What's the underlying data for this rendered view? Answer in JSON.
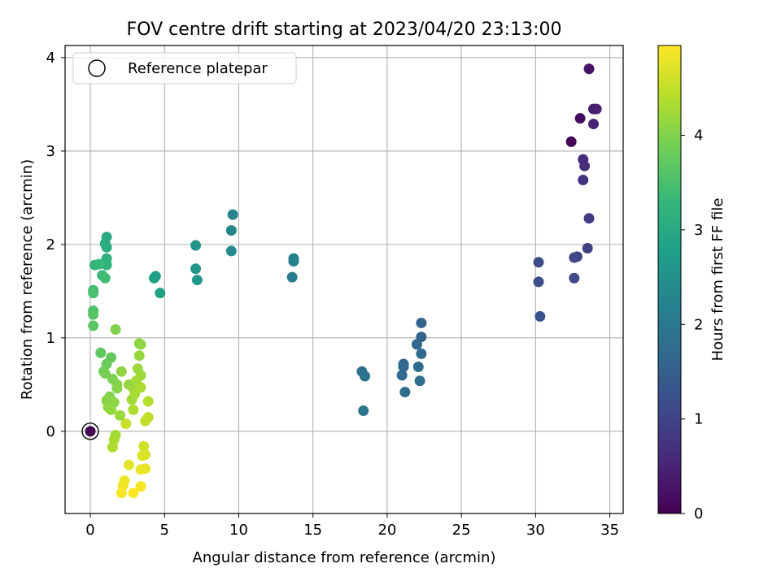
{
  "chart_data": {
    "type": "scatter",
    "title": "FOV centre drift starting at 2023/04/20 23:13:00",
    "xlabel": "Angular distance from reference (arcmin)",
    "ylabel": "Rotation from reference (arcmin)",
    "xlim": [
      -1.7,
      35.9
    ],
    "ylim": [
      -0.88,
      4.13
    ],
    "xticks": [
      0,
      5,
      10,
      15,
      20,
      25,
      30,
      35
    ],
    "yticks": [
      0,
      1,
      2,
      3,
      4
    ],
    "grid": true,
    "legend": {
      "position": "top-left",
      "entries": [
        "Reference platepar"
      ]
    },
    "reference_point": {
      "x": 0,
      "y": 0
    },
    "colorbar": {
      "label": "Hours from first FF file",
      "colormap": "viridis",
      "range": [
        0,
        4.95
      ],
      "ticks": [
        0,
        1,
        2,
        3,
        4
      ]
    },
    "points": [
      {
        "x": 32.4,
        "y": 3.1,
        "c": 0.05
      },
      {
        "x": 33.0,
        "y": 3.35,
        "c": 0.15
      },
      {
        "x": 33.6,
        "y": 3.88,
        "c": 0.25
      },
      {
        "x": 33.9,
        "y": 3.45,
        "c": 0.35
      },
      {
        "x": 34.1,
        "y": 3.45,
        "c": 0.45
      },
      {
        "x": 33.9,
        "y": 3.29,
        "c": 0.5
      },
      {
        "x": 33.2,
        "y": 2.91,
        "c": 0.6
      },
      {
        "x": 33.3,
        "y": 2.84,
        "c": 0.65
      },
      {
        "x": 33.2,
        "y": 2.69,
        "c": 0.75
      },
      {
        "x": 33.6,
        "y": 2.28,
        "c": 0.85
      },
      {
        "x": 33.5,
        "y": 1.96,
        "c": 0.95
      },
      {
        "x": 32.8,
        "y": 1.87,
        "c": 1.0
      },
      {
        "x": 32.6,
        "y": 1.86,
        "c": 1.05
      },
      {
        "x": 32.6,
        "y": 1.64,
        "c": 1.1
      },
      {
        "x": 30.2,
        "y": 1.81,
        "c": 1.15
      },
      {
        "x": 30.2,
        "y": 1.6,
        "c": 1.2
      },
      {
        "x": 30.3,
        "y": 1.23,
        "c": 1.25
      },
      {
        "x": 22.3,
        "y": 1.16,
        "c": 1.55
      },
      {
        "x": 22.3,
        "y": 1.01,
        "c": 1.6
      },
      {
        "x": 22.0,
        "y": 0.93,
        "c": 1.65
      },
      {
        "x": 22.3,
        "y": 0.83,
        "c": 1.7
      },
      {
        "x": 22.1,
        "y": 0.69,
        "c": 1.75
      },
      {
        "x": 22.2,
        "y": 0.54,
        "c": 1.8
      },
      {
        "x": 21.1,
        "y": 0.72,
        "c": 1.6
      },
      {
        "x": 21.1,
        "y": 0.69,
        "c": 1.65
      },
      {
        "x": 21.0,
        "y": 0.6,
        "c": 1.7
      },
      {
        "x": 21.2,
        "y": 0.42,
        "c": 1.75
      },
      {
        "x": 18.3,
        "y": 0.64,
        "c": 1.85
      },
      {
        "x": 18.5,
        "y": 0.59,
        "c": 1.9
      },
      {
        "x": 18.4,
        "y": 0.22,
        "c": 1.95
      },
      {
        "x": 13.6,
        "y": 1.65,
        "c": 2.1
      },
      {
        "x": 13.7,
        "y": 1.82,
        "c": 2.15
      },
      {
        "x": 13.7,
        "y": 1.85,
        "c": 2.2
      },
      {
        "x": 9.6,
        "y": 2.32,
        "c": 2.25
      },
      {
        "x": 9.5,
        "y": 2.15,
        "c": 2.3
      },
      {
        "x": 9.5,
        "y": 1.93,
        "c": 2.35
      },
      {
        "x": 7.1,
        "y": 1.99,
        "c": 2.55
      },
      {
        "x": 7.1,
        "y": 1.74,
        "c": 2.6
      },
      {
        "x": 7.2,
        "y": 1.62,
        "c": 2.65
      },
      {
        "x": 4.4,
        "y": 1.66,
        "c": 2.7
      },
      {
        "x": 4.3,
        "y": 1.64,
        "c": 2.75
      },
      {
        "x": 4.7,
        "y": 1.48,
        "c": 2.8
      },
      {
        "x": 1.1,
        "y": 2.08,
        "c": 3.0
      },
      {
        "x": 1.0,
        "y": 2.01,
        "c": 3.05
      },
      {
        "x": 1.1,
        "y": 1.97,
        "c": 3.1
      },
      {
        "x": 1.1,
        "y": 1.85,
        "c": 3.15
      },
      {
        "x": 1.1,
        "y": 1.78,
        "c": 3.2
      },
      {
        "x": 0.3,
        "y": 1.78,
        "c": 3.25
      },
      {
        "x": 0.6,
        "y": 1.79,
        "c": 3.3
      },
      {
        "x": 0.8,
        "y": 1.67,
        "c": 3.35
      },
      {
        "x": 1.0,
        "y": 1.64,
        "c": 3.4
      },
      {
        "x": 0.2,
        "y": 1.51,
        "c": 3.45
      },
      {
        "x": 0.2,
        "y": 1.48,
        "c": 3.5
      },
      {
        "x": 0.2,
        "y": 1.29,
        "c": 3.55
      },
      {
        "x": 0.2,
        "y": 1.25,
        "c": 3.6
      },
      {
        "x": 0.2,
        "y": 1.13,
        "c": 3.65
      },
      {
        "x": 0.7,
        "y": 0.84,
        "c": 3.7
      },
      {
        "x": 1.4,
        "y": 0.79,
        "c": 3.75
      },
      {
        "x": 1.1,
        "y": 0.72,
        "c": 3.8
      },
      {
        "x": 0.9,
        "y": 0.64,
        "c": 3.85
      },
      {
        "x": 1.0,
        "y": 0.62,
        "c": 3.9
      },
      {
        "x": 1.5,
        "y": 0.56,
        "c": 3.95
      },
      {
        "x": 1.8,
        "y": 0.5,
        "c": 4.0
      },
      {
        "x": 1.8,
        "y": 0.46,
        "c": 4.05
      },
      {
        "x": 1.3,
        "y": 0.37,
        "c": 4.0
      },
      {
        "x": 1.1,
        "y": 0.33,
        "c": 4.05
      },
      {
        "x": 1.2,
        "y": 0.26,
        "c": 4.1
      },
      {
        "x": 1.4,
        "y": 0.23,
        "c": 4.15
      },
      {
        "x": 1.6,
        "y": 0.31,
        "c": 4.1
      },
      {
        "x": 2.0,
        "y": 0.17,
        "c": 4.2
      },
      {
        "x": 1.7,
        "y": 1.09,
        "c": 4.0
      },
      {
        "x": 2.1,
        "y": 0.64,
        "c": 4.1
      },
      {
        "x": 1.7,
        "y": -0.04,
        "c": 4.25
      },
      {
        "x": 1.6,
        "y": -0.09,
        "c": 4.3
      },
      {
        "x": 1.5,
        "y": -0.17,
        "c": 4.35
      },
      {
        "x": 2.6,
        "y": 0.5,
        "c": 4.15
      },
      {
        "x": 2.9,
        "y": 0.46,
        "c": 4.2
      },
      {
        "x": 2.8,
        "y": 0.34,
        "c": 4.25
      },
      {
        "x": 3.3,
        "y": 0.94,
        "c": 4.1
      },
      {
        "x": 3.4,
        "y": 0.93,
        "c": 4.12
      },
      {
        "x": 3.3,
        "y": 0.81,
        "c": 4.15
      },
      {
        "x": 3.2,
        "y": 0.67,
        "c": 4.2
      },
      {
        "x": 3.4,
        "y": 0.6,
        "c": 4.22
      },
      {
        "x": 3.1,
        "y": 0.54,
        "c": 4.25
      },
      {
        "x": 3.0,
        "y": 0.4,
        "c": 4.3
      },
      {
        "x": 3.4,
        "y": 0.47,
        "c": 4.32
      },
      {
        "x": 2.9,
        "y": 0.23,
        "c": 4.35
      },
      {
        "x": 3.9,
        "y": 0.32,
        "c": 4.4
      },
      {
        "x": 3.9,
        "y": 0.15,
        "c": 4.45
      },
      {
        "x": 3.7,
        "y": 0.11,
        "c": 4.5
      },
      {
        "x": 2.4,
        "y": 0.08,
        "c": 4.55
      },
      {
        "x": 3.6,
        "y": -0.16,
        "c": 4.6
      },
      {
        "x": 3.7,
        "y": -0.25,
        "c": 4.65
      },
      {
        "x": 3.5,
        "y": -0.26,
        "c": 4.7
      },
      {
        "x": 2.6,
        "y": -0.36,
        "c": 4.75
      },
      {
        "x": 3.7,
        "y": -0.4,
        "c": 4.75
      },
      {
        "x": 3.4,
        "y": -0.41,
        "c": 4.8
      },
      {
        "x": 2.3,
        "y": -0.53,
        "c": 4.85
      },
      {
        "x": 2.2,
        "y": -0.58,
        "c": 4.85
      },
      {
        "x": 3.4,
        "y": -0.59,
        "c": 4.9
      },
      {
        "x": 2.1,
        "y": -0.66,
        "c": 4.92
      },
      {
        "x": 2.9,
        "y": -0.66,
        "c": 4.95
      },
      {
        "x": 0.0,
        "y": 0.0,
        "c": 0.0
      }
    ]
  }
}
